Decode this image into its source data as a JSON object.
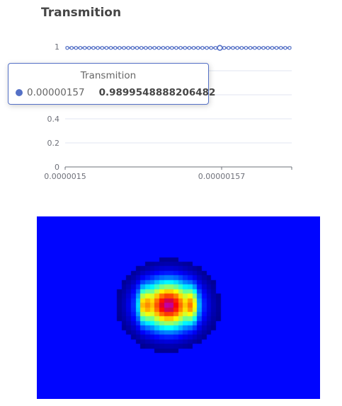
{
  "chart_data": [
    {
      "type": "line",
      "title": "Transmition",
      "series": [
        {
          "name": "Transmition",
          "color": "#5470c6",
          "point_count": 52,
          "values": [
            0.99,
            0.99,
            0.99,
            0.99,
            0.99,
            0.99,
            0.99,
            0.99,
            0.99,
            0.99,
            0.99,
            0.99,
            0.99,
            0.99,
            0.99,
            0.99,
            0.99,
            0.99,
            0.99,
            0.99,
            0.99,
            0.99,
            0.99,
            0.99,
            0.99,
            0.99,
            0.99,
            0.99,
            0.99,
            0.99,
            0.99,
            0.99,
            0.99,
            0.99,
            0.99,
            0.99,
            0.99,
            0.99,
            0.99,
            0.99,
            0.99,
            0.99,
            0.99,
            0.99,
            0.99,
            0.99,
            0.99,
            0.99,
            0.99,
            0.99,
            0.99,
            0.99
          ]
        }
      ],
      "x_tick_labels": [
        "0.0000015",
        "0.00000157"
      ],
      "y_ticks": [
        0,
        0.2,
        0.4,
        1
      ],
      "ylim": [
        0,
        1
      ],
      "grid": true,
      "tooltip": {
        "title": "Transmition",
        "x": "0.00000157",
        "value": "0.9899548888206482",
        "highlight_index": 35
      }
    },
    {
      "type": "heatmap",
      "colormap": "jet",
      "grid_cols": 60,
      "grid_rows": 40
    }
  ]
}
